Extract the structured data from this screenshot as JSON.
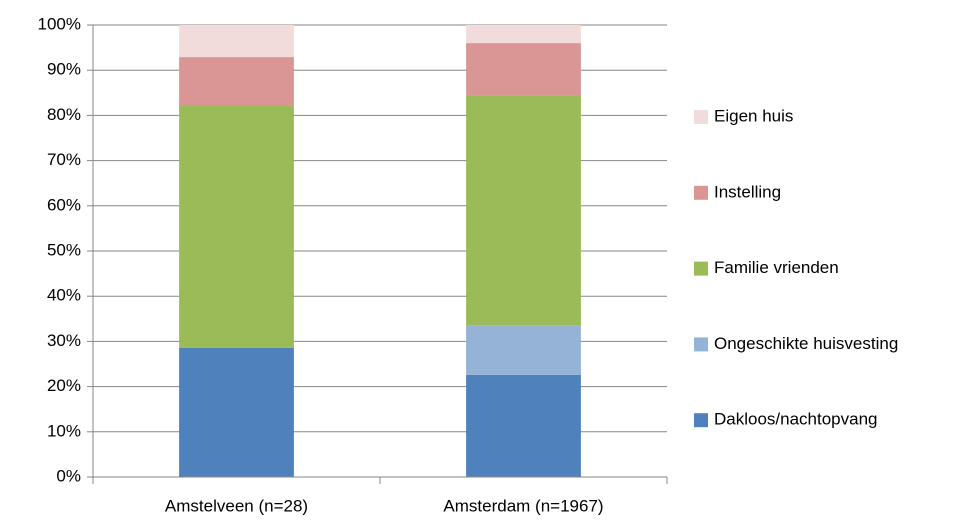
{
  "chart_data": {
    "type": "stacked_bar",
    "categories": [
      "Amstelveen (n=28)",
      "Amsterdam (n=1967)"
    ],
    "series": [
      {
        "name": "Dakloos/nachtopvang",
        "color": "#4f81bd",
        "values": [
          28.6,
          22.6
        ]
      },
      {
        "name": "Ongeschikte huisvesting",
        "color": "#95b3d7",
        "values": [
          0,
          11.0
        ]
      },
      {
        "name": "Familie vrienden",
        "color": "#9bbb59",
        "values": [
          53.6,
          50.7
        ]
      },
      {
        "name": "Instelling",
        "color": "#d99694",
        "values": [
          10.7,
          11.7
        ]
      },
      {
        "name": "Eigen huis",
        "color": "#f2dcdb",
        "values": [
          7.1,
          4.0
        ]
      }
    ],
    "ylim": [
      0,
      100
    ],
    "yticks": [
      {
        "value": 0,
        "label": "0%"
      },
      {
        "value": 10,
        "label": "10%"
      },
      {
        "value": 20,
        "label": "20%"
      },
      {
        "value": 30,
        "label": "30%"
      },
      {
        "value": 40,
        "label": "40%"
      },
      {
        "value": 50,
        "label": "50%"
      },
      {
        "value": 60,
        "label": "60%"
      },
      {
        "value": 70,
        "label": "70%"
      },
      {
        "value": 80,
        "label": "80%"
      },
      {
        "value": 90,
        "label": "90%"
      },
      {
        "value": 100,
        "label": "100%"
      }
    ],
    "grid": true,
    "legend": "right"
  }
}
